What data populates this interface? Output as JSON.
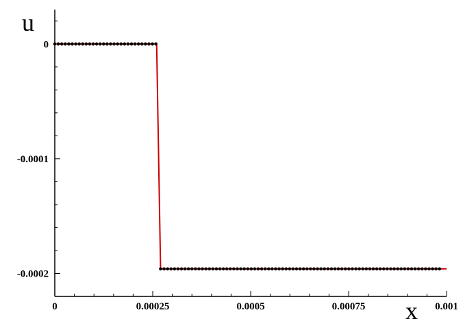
{
  "chart_data": {
    "type": "line",
    "title": "",
    "xlabel": "x",
    "ylabel": "u",
    "xlim": [
      0,
      0.001
    ],
    "ylim": [
      -0.00022,
      3e-05
    ],
    "x_ticks": [
      0,
      0.00025,
      0.0005,
      0.00075,
      0.001
    ],
    "x_tick_labels": [
      "0",
      "0.00025",
      "0.0005",
      "0.00075",
      "0.001"
    ],
    "y_ticks": [
      0,
      -0.0001,
      -0.0002
    ],
    "y_tick_labels": [
      "0",
      "-0.0001",
      "-0.0002"
    ],
    "grid": false,
    "legend": "none",
    "series": [
      {
        "style": "line",
        "color": "#cc0000",
        "x": [
          0,
          0.00026,
          0.00027,
          0.001
        ],
        "y": [
          0,
          0,
          -0.000196,
          -0.000196
        ]
      },
      {
        "style": "markers",
        "color": "#000000",
        "marker_spacing": 8.9e-06,
        "segments": [
          {
            "x_start": 0,
            "x_end": 0.00026,
            "y": 0
          },
          {
            "x_start": 0.00027,
            "x_end": 0.00099,
            "y": -0.000196
          }
        ]
      }
    ]
  }
}
